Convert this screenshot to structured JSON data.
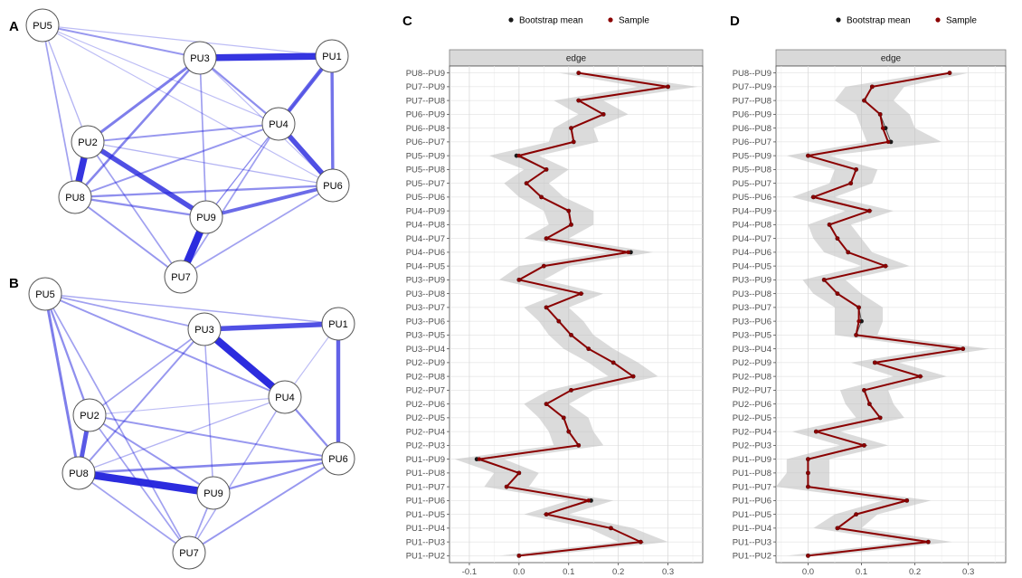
{
  "panel_letters": {
    "a": "A",
    "b": "B",
    "c": "C",
    "d": "D"
  },
  "colors": {
    "edge": "#2323dd",
    "node_fill": "#ffffff",
    "node_stroke": "#555555",
    "sample_line": "#8b0000",
    "bootstrap_point": "#1a1a1a",
    "ci_band": "#bdbdbd",
    "strip_bg": "#d9d9d9",
    "grid_major": "#dadada",
    "grid_minor": "#eeeeee"
  },
  "chart_data": [
    {
      "panel": "A",
      "type": "network",
      "nodes": [
        "PU1",
        "PU2",
        "PU3",
        "PU4",
        "PU5",
        "PU6",
        "PU7",
        "PU8",
        "PU9"
      ],
      "edges": [
        {
          "a": "PU3",
          "b": "PU1",
          "w": 0.9
        },
        {
          "a": "PU1",
          "b": "PU4",
          "w": 0.65
        },
        {
          "a": "PU1",
          "b": "PU6",
          "w": 0.55
        },
        {
          "a": "PU4",
          "b": "PU6",
          "w": 0.75
        },
        {
          "a": "PU2",
          "b": "PU8",
          "w": 0.9
        },
        {
          "a": "PU2",
          "b": "PU9",
          "w": 0.75
        },
        {
          "a": "PU9",
          "b": "PU7",
          "w": 0.95
        },
        {
          "a": "PU9",
          "b": "PU6",
          "w": 0.6
        },
        {
          "a": "PU8",
          "b": "PU6",
          "w": 0.4
        },
        {
          "a": "PU3",
          "b": "PU2",
          "w": 0.5
        },
        {
          "a": "PU3",
          "b": "PU8",
          "w": 0.45
        },
        {
          "a": "PU3",
          "b": "PU4",
          "w": 0.4
        },
        {
          "a": "PU3",
          "b": "PU9",
          "w": 0.3
        },
        {
          "a": "PU2",
          "b": "PU4",
          "w": 0.35
        },
        {
          "a": "PU4",
          "b": "PU8",
          "w": 0.35
        },
        {
          "a": "PU4",
          "b": "PU7",
          "w": 0.3
        },
        {
          "a": "PU8",
          "b": "PU9",
          "w": 0.4
        },
        {
          "a": "PU8",
          "b": "PU7",
          "w": 0.35
        },
        {
          "a": "PU2",
          "b": "PU7",
          "w": 0.3
        },
        {
          "a": "PU5",
          "b": "PU3",
          "w": 0.35
        },
        {
          "a": "PU5",
          "b": "PU8",
          "w": 0.3
        },
        {
          "a": "PU5",
          "b": "PU2",
          "w": 0.2
        },
        {
          "a": "PU5",
          "b": "PU1",
          "w": 0.15
        },
        {
          "a": "PU5",
          "b": "PU4",
          "w": 0.15
        },
        {
          "a": "PU5",
          "b": "PU6",
          "w": 0.15
        },
        {
          "a": "PU2",
          "b": "PU6",
          "w": 0.2
        },
        {
          "a": "PU7",
          "b": "PU6",
          "w": 0.3
        },
        {
          "a": "PU3",
          "b": "PU6",
          "w": 0.15
        },
        {
          "a": "PU4",
          "b": "PU9",
          "w": 0.2
        },
        {
          "a": "PU1",
          "b": "PU9",
          "w": 0.15
        }
      ]
    },
    {
      "panel": "B",
      "type": "network",
      "nodes": [
        "PU1",
        "PU2",
        "PU3",
        "PU4",
        "PU5",
        "PU6",
        "PU7",
        "PU8",
        "PU9"
      ],
      "edges": [
        {
          "a": "PU3",
          "b": "PU1",
          "w": 0.75
        },
        {
          "a": "PU3",
          "b": "PU4",
          "w": 0.95
        },
        {
          "a": "PU1",
          "b": "PU6",
          "w": 0.65
        },
        {
          "a": "PU8",
          "b": "PU9",
          "w": 0.95
        },
        {
          "a": "PU2",
          "b": "PU8",
          "w": 0.7
        },
        {
          "a": "PU5",
          "b": "PU8",
          "w": 0.5
        },
        {
          "a": "PU5",
          "b": "PU2",
          "w": 0.4
        },
        {
          "a": "PU5",
          "b": "PU3",
          "w": 0.3
        },
        {
          "a": "PU5",
          "b": "PU1",
          "w": 0.25
        },
        {
          "a": "PU5",
          "b": "PU4",
          "w": 0.35
        },
        {
          "a": "PU5",
          "b": "PU7",
          "w": 0.3
        },
        {
          "a": "PU4",
          "b": "PU6",
          "w": 0.4
        },
        {
          "a": "PU8",
          "b": "PU6",
          "w": 0.45
        },
        {
          "a": "PU9",
          "b": "PU6",
          "w": 0.4
        },
        {
          "a": "PU2",
          "b": "PU6",
          "w": 0.35
        },
        {
          "a": "PU2",
          "b": "PU9",
          "w": 0.35
        },
        {
          "a": "PU2",
          "b": "PU7",
          "w": 0.3
        },
        {
          "a": "PU7",
          "b": "PU6",
          "w": 0.35
        },
        {
          "a": "PU8",
          "b": "PU7",
          "w": 0.3
        },
        {
          "a": "PU3",
          "b": "PU8",
          "w": 0.35
        },
        {
          "a": "PU3",
          "b": "PU9",
          "w": 0.25
        },
        {
          "a": "PU3",
          "b": "PU2",
          "w": 0.3
        },
        {
          "a": "PU1",
          "b": "PU4",
          "w": 0.15
        },
        {
          "a": "PU4",
          "b": "PU7",
          "w": 0.25
        },
        {
          "a": "PU4",
          "b": "PU2",
          "w": 0.15
        },
        {
          "a": "PU9",
          "b": "PU7",
          "w": 0.3
        },
        {
          "a": "PU8",
          "b": "PU4",
          "w": 0.2
        }
      ]
    },
    {
      "panel": "C",
      "type": "line",
      "facet_label": "edge",
      "legend": [
        "Bootstrap mean",
        "Sample"
      ],
      "categories": [
        "PU8--PU9",
        "PU7--PU9",
        "PU7--PU8",
        "PU6--PU9",
        "PU6--PU8",
        "PU6--PU7",
        "PU5--PU9",
        "PU5--PU8",
        "PU5--PU7",
        "PU5--PU6",
        "PU4--PU9",
        "PU4--PU8",
        "PU4--PU7",
        "PU4--PU6",
        "PU4--PU5",
        "PU3--PU9",
        "PU3--PU8",
        "PU3--PU7",
        "PU3--PU6",
        "PU3--PU5",
        "PU3--PU4",
        "PU2--PU9",
        "PU2--PU8",
        "PU2--PU7",
        "PU2--PU6",
        "PU2--PU5",
        "PU2--PU4",
        "PU2--PU3",
        "PU1--PU9",
        "PU1--PU8",
        "PU1--PU7",
        "PU1--PU6",
        "PU1--PU5",
        "PU1--PU4",
        "PU1--PU3",
        "PU1--PU2"
      ],
      "xlim": [
        -0.14,
        0.37
      ],
      "xticks": [
        -0.1,
        0.0,
        0.1,
        0.2,
        0.3
      ],
      "xtick_labels": [
        "-0.1",
        "0.0",
        "0.1",
        "0.2",
        "0.3"
      ],
      "sample": [
        0.12,
        0.3,
        0.12,
        0.17,
        0.105,
        0.11,
        0.0,
        0.055,
        0.015,
        0.045,
        0.1,
        0.105,
        0.055,
        0.22,
        0.05,
        0.0,
        0.125,
        0.055,
        0.08,
        0.105,
        0.14,
        0.19,
        0.23,
        0.105,
        0.055,
        0.09,
        0.1,
        0.12,
        -0.08,
        0.0,
        -0.025,
        0.14,
        0.055,
        0.185,
        0.245,
        0.0
      ],
      "bootstrap_mean": [
        0.12,
        0.3,
        0.12,
        0.17,
        0.105,
        0.11,
        -0.005,
        0.055,
        0.015,
        0.045,
        0.1,
        0.105,
        0.055,
        0.225,
        0.05,
        0.0,
        0.125,
        0.055,
        0.08,
        0.105,
        0.14,
        0.19,
        0.23,
        0.105,
        0.055,
        0.09,
        0.1,
        0.12,
        -0.085,
        0.0,
        -0.025,
        0.145,
        0.055,
        0.185,
        0.245,
        0.0
      ],
      "ci_lower": [
        0.08,
        0.24,
        0.07,
        0.12,
        0.07,
        0.06,
        -0.06,
        0.01,
        -0.03,
        0.0,
        0.05,
        0.06,
        0.01,
        0.18,
        0.0,
        -0.04,
        0.08,
        0.01,
        0.04,
        0.06,
        0.09,
        0.14,
        0.18,
        0.06,
        0.01,
        0.04,
        0.06,
        0.07,
        -0.13,
        -0.05,
        -0.07,
        0.1,
        0.01,
        0.14,
        0.2,
        -0.04
      ],
      "ci_upper": [
        0.16,
        0.36,
        0.17,
        0.22,
        0.15,
        0.16,
        0.04,
        0.1,
        0.06,
        0.09,
        0.15,
        0.15,
        0.1,
        0.27,
        0.1,
        0.05,
        0.17,
        0.1,
        0.13,
        0.15,
        0.19,
        0.24,
        0.28,
        0.15,
        0.1,
        0.14,
        0.15,
        0.17,
        -0.03,
        0.04,
        0.02,
        0.19,
        0.1,
        0.23,
        0.3,
        0.04
      ]
    },
    {
      "panel": "D",
      "type": "line",
      "facet_label": "edge",
      "legend": [
        "Bootstrap mean",
        "Sample"
      ],
      "categories": [
        "PU8--PU9",
        "PU7--PU9",
        "PU7--PU8",
        "PU6--PU9",
        "PU6--PU8",
        "PU6--PU7",
        "PU5--PU9",
        "PU5--PU8",
        "PU5--PU7",
        "PU5--PU6",
        "PU4--PU9",
        "PU4--PU8",
        "PU4--PU7",
        "PU4--PU6",
        "PU4--PU5",
        "PU3--PU9",
        "PU3--PU8",
        "PU3--PU7",
        "PU3--PU6",
        "PU3--PU5",
        "PU3--PU4",
        "PU2--PU9",
        "PU2--PU8",
        "PU2--PU7",
        "PU2--PU6",
        "PU2--PU5",
        "PU2--PU4",
        "PU2--PU3",
        "PU1--PU9",
        "PU1--PU8",
        "PU1--PU7",
        "PU1--PU6",
        "PU1--PU5",
        "PU1--PU4",
        "PU1--PU3",
        "PU1--PU2"
      ],
      "xlim": [
        -0.06,
        0.37
      ],
      "xticks": [
        0.0,
        0.1,
        0.2,
        0.3
      ],
      "xtick_labels": [
        "0.0",
        "0.1",
        "0.2",
        "0.3"
      ],
      "sample": [
        0.265,
        0.12,
        0.105,
        0.135,
        0.14,
        0.15,
        0.0,
        0.09,
        0.08,
        0.01,
        0.115,
        0.04,
        0.055,
        0.075,
        0.145,
        0.03,
        0.055,
        0.095,
        0.095,
        0.09,
        0.29,
        0.125,
        0.21,
        0.105,
        0.115,
        0.135,
        0.015,
        0.105,
        0.0,
        0.0,
        0.0,
        0.185,
        0.09,
        0.055,
        0.225,
        0.0
      ],
      "bootstrap_mean": [
        0.265,
        0.12,
        0.105,
        0.135,
        0.145,
        0.155,
        0.0,
        0.09,
        0.08,
        0.01,
        0.115,
        0.04,
        0.055,
        0.075,
        0.145,
        0.03,
        0.055,
        0.095,
        0.1,
        0.09,
        0.29,
        0.125,
        0.21,
        0.105,
        0.115,
        0.135,
        0.015,
        0.105,
        0.0,
        0.0,
        0.0,
        0.185,
        0.09,
        0.055,
        0.225,
        0.0
      ],
      "ci_lower": [
        0.23,
        0.07,
        0.05,
        0.09,
        0.1,
        0.11,
        -0.04,
        0.05,
        0.04,
        -0.03,
        0.07,
        0.0,
        0.01,
        0.03,
        0.1,
        -0.01,
        0.01,
        0.05,
        0.05,
        0.05,
        0.24,
        0.08,
        0.16,
        0.06,
        0.07,
        0.09,
        -0.03,
        0.06,
        -0.04,
        -0.04,
        -0.06,
        0.14,
        0.05,
        0.01,
        0.18,
        -0.04
      ],
      "ci_upper": [
        0.3,
        0.18,
        0.16,
        0.19,
        0.2,
        0.25,
        0.04,
        0.13,
        0.12,
        0.05,
        0.16,
        0.08,
        0.1,
        0.12,
        0.19,
        0.07,
        0.1,
        0.14,
        0.14,
        0.13,
        0.34,
        0.17,
        0.26,
        0.15,
        0.16,
        0.18,
        0.06,
        0.15,
        0.04,
        0.04,
        0.04,
        0.23,
        0.13,
        0.1,
        0.27,
        0.04
      ]
    }
  ]
}
